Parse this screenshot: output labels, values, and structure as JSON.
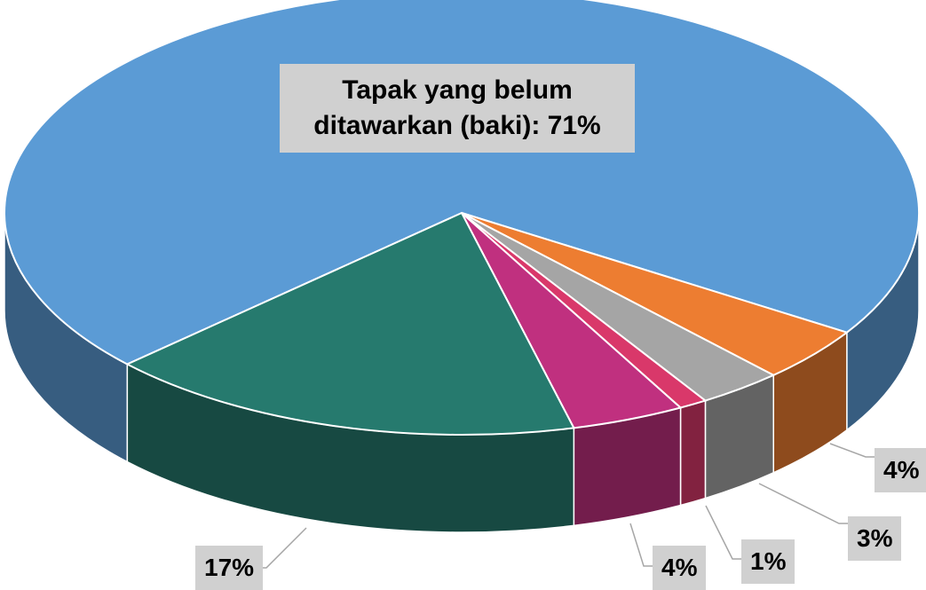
{
  "chart_data": {
    "type": "pie3d",
    "values": [
      71,
      4,
      3,
      1,
      4,
      17
    ],
    "value_labels": [
      "Tapak yang belum ditawarkan (baki): 71%",
      "4%",
      "3%",
      "1%",
      "4%",
      "17%"
    ],
    "colors": [
      "#5b9bd5",
      "#ed7d31",
      "#a5a5a5",
      "#d9386a",
      "#c0307f",
      "#267a6e"
    ]
  }
}
